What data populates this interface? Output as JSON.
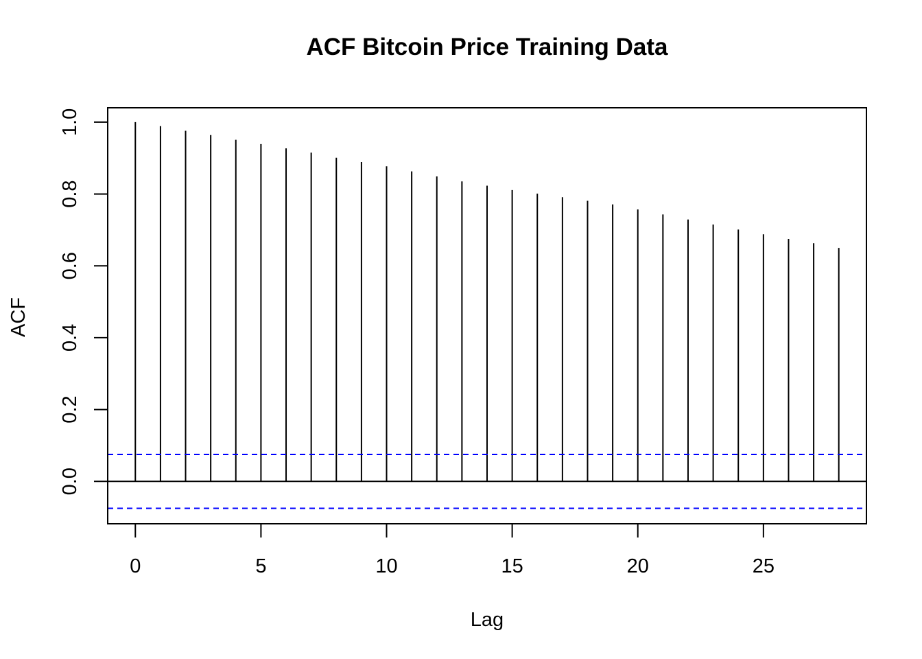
{
  "chart_data": {
    "type": "bar",
    "title": "ACF Bitcoin Price Training Data",
    "xlabel": "Lag",
    "ylabel": "ACF",
    "xlim": [
      -1.1,
      29.1
    ],
    "ylim": [
      -0.118,
      1.04
    ],
    "x_ticks": [
      "0",
      "5",
      "10",
      "15",
      "20",
      "25"
    ],
    "y_ticks": [
      "0.0",
      "0.2",
      "0.4",
      "0.6",
      "0.8",
      "1.0"
    ],
    "series": [
      {
        "x": [
          0,
          1,
          2,
          3,
          4,
          5,
          6,
          7,
          8,
          9,
          10,
          11,
          12,
          13,
          14,
          15,
          16,
          17,
          18,
          19,
          20,
          21,
          22,
          23,
          24,
          25,
          26,
          27,
          28
        ],
        "values": [
          1.0,
          0.989,
          0.976,
          0.964,
          0.951,
          0.939,
          0.927,
          0.915,
          0.901,
          0.889,
          0.877,
          0.863,
          0.849,
          0.835,
          0.823,
          0.811,
          0.801,
          0.791,
          0.781,
          0.771,
          0.757,
          0.743,
          0.729,
          0.715,
          0.701,
          0.688,
          0.675,
          0.663,
          0.65
        ]
      }
    ],
    "confidence_bounds": [
      0.075,
      -0.075
    ],
    "grid": false,
    "colors": {
      "bars": "#000000",
      "zero_line": "#000000",
      "confidence": "#0000ff",
      "frame": "#000000"
    }
  }
}
